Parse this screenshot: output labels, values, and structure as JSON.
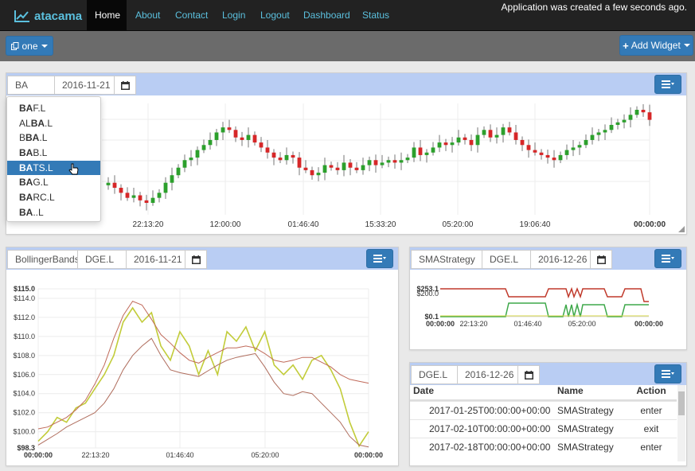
{
  "navbar": {
    "brand": "atacama",
    "links": [
      "Home",
      "About",
      "Contact",
      "Login",
      "Logout",
      "Dashboard",
      "Status"
    ],
    "active": "Home",
    "status_text": "Application was created a few seconds ago."
  },
  "toolbar": {
    "workspace_label": "one",
    "add_widget_label": "Add Widget"
  },
  "widget_main": {
    "symbol_value": "BA",
    "date_value": "2016-11-21",
    "autocomplete": [
      {
        "pre": "",
        "match": "BA",
        "post": "F.L"
      },
      {
        "pre": "AL",
        "match": "BA",
        "post": ".L"
      },
      {
        "pre": "B",
        "match": "BA",
        "post": ".L"
      },
      {
        "pre": "",
        "match": "BA",
        "post": "B.L"
      },
      {
        "pre": "",
        "match": "BA",
        "post": "TS.L"
      },
      {
        "pre": "",
        "match": "BA",
        "post": "G.L"
      },
      {
        "pre": "",
        "match": "BA",
        "post": "RC.L"
      },
      {
        "pre": "",
        "match": "BA",
        "post": "..L"
      }
    ],
    "highlighted_index": 4
  },
  "widget_bollinger": {
    "strategy": "BollingerBands",
    "symbol": "DGE.L",
    "date": "2016-11-21"
  },
  "widget_sma": {
    "strategy": "SMAStrategy",
    "symbol": "DGE.L",
    "date": "2016-12-26"
  },
  "widget_trades": {
    "symbol": "DGE.L",
    "date": "2016-12-26",
    "columns": [
      "Date",
      "Name",
      "Action"
    ],
    "rows": [
      [
        "2017-01-25T00:00:00+00:00",
        "SMAStrategy",
        "enter"
      ],
      [
        "2017-02-10T00:00:00+00:00",
        "SMAStrategy",
        "exit"
      ],
      [
        "2017-02-18T00:00:00+00:00",
        "SMAStrategy",
        "enter"
      ]
    ]
  },
  "colors": {
    "up": "#2ca02c",
    "down": "#d62728",
    "accent": "#337ab7",
    "panel_head": "#b9cdf3"
  },
  "chart_data": [
    {
      "type": "candlestick",
      "x_tick_labels": [
        "22:13:20",
        "12:00:00",
        "01:46:40",
        "15:33:20",
        "05:20:00",
        "19:06:40",
        "00:00:00"
      ],
      "closes": [
        102,
        103,
        101,
        99,
        97,
        98,
        96,
        95,
        97,
        99,
        103,
        106,
        109,
        112,
        113,
        116,
        118,
        120,
        123,
        125,
        124,
        121,
        120,
        122,
        119,
        117,
        115,
        113,
        112,
        114,
        113,
        109,
        108,
        106,
        107,
        110,
        109,
        108,
        111,
        109,
        108,
        110,
        112,
        110,
        111,
        112,
        111,
        112,
        113,
        117,
        114,
        115,
        117,
        119,
        118,
        119,
        121,
        120,
        118,
        122,
        124,
        121,
        122,
        125,
        123,
        120,
        118,
        116,
        115,
        114,
        113,
        112,
        114,
        116,
        117,
        118,
        120,
        122,
        123,
        124,
        126,
        127,
        128,
        130,
        132,
        131,
        128
      ],
      "y_range": [
        95,
        132
      ]
    },
    {
      "type": "line",
      "title": "BollingerBands",
      "y_tick_labels": [
        "$115.0",
        "$114.0",
        "$112.0",
        "$110.0",
        "$108.0",
        "$106.0",
        "$104.0",
        "$102.0",
        "$100.0",
        "$98.3"
      ],
      "x_tick_labels": [
        "00:00:00",
        "22:13:20",
        "01:46:40",
        "05:20:00",
        "00:00:00"
      ],
      "ylim": [
        98.3,
        115.0
      ],
      "series": [
        {
          "values": [
            99.0,
            100.0,
            101.5,
            101.0,
            102.5,
            103.0,
            104.5,
            106.0,
            108.0,
            111.5,
            113.0,
            111.5,
            112.5,
            109.0,
            107.5,
            110.5,
            109.0,
            106.0,
            108.5,
            106.0,
            110.5,
            109.5,
            111.0,
            108.5,
            110.5,
            107.0,
            106.0,
            107.0,
            105.5,
            107.5,
            108.0,
            106.5,
            104.5,
            101.0,
            98.5,
            100.0
          ]
        },
        {
          "values": [
            100.3,
            100.5,
            101.0,
            101.5,
            102.3,
            103.3,
            105.0,
            107.0,
            109.8,
            112.2,
            113.7,
            113.3,
            111.8,
            110.2,
            109.3,
            108.3,
            107.5,
            107.2,
            107.8,
            108.3,
            108.8,
            108.8,
            109.0,
            108.8,
            108.2,
            107.5,
            107.3,
            107.5,
            107.8,
            107.8,
            107.3,
            106.8,
            106.0,
            105.5,
            105.3,
            105.1
          ]
        },
        {
          "values": [
            98.6,
            99.2,
            99.8,
            100.5,
            101.0,
            101.5,
            102.0,
            103.0,
            104.5,
            106.5,
            108.0,
            109.0,
            109.8,
            108.0,
            106.5,
            106.2,
            106.0,
            105.8,
            106.4,
            107.0,
            107.5,
            107.8,
            108.0,
            108.2,
            106.8,
            105.2,
            104.0,
            103.8,
            104.2,
            104.0,
            103.0,
            102.0,
            101.0,
            99.5,
            98.6,
            98.4
          ]
        }
      ]
    },
    {
      "type": "line",
      "title": "SMAStrategy",
      "y_tick_labels": [
        "$253.1",
        "$200.0",
        "$0.1"
      ],
      "x_tick_labels": [
        "00:00:00",
        "22:13:20",
        "01:46:40",
        "05:20:00",
        "00:00:00"
      ],
      "ylim": [
        0.1,
        253.1
      ]
    }
  ]
}
